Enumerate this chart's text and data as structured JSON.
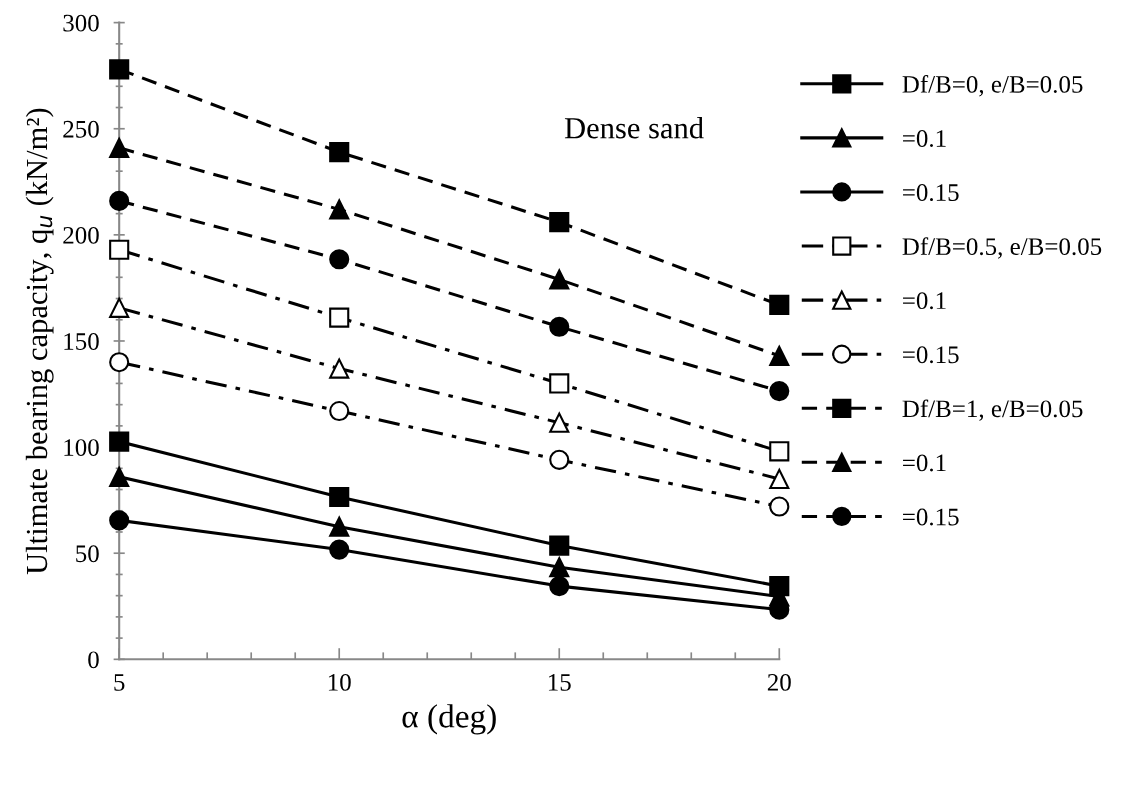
{
  "chart_data": {
    "type": "line",
    "xlabel": "α (deg)",
    "ylabel": "Ultimate bearing capacity, q$_{u}$ (kN/m²)",
    "x": [
      5,
      10,
      15,
      20
    ],
    "xlim": [
      5,
      20
    ],
    "xticks": [
      5,
      10,
      15,
      20
    ],
    "ylim": [
      0,
      300
    ],
    "yticks": [
      0,
      50,
      100,
      150,
      200,
      250,
      300
    ],
    "grid": false,
    "legend": "right",
    "annotations": [
      "Dense sand"
    ],
    "series": [
      {
        "name": "Df/B=0, e/B=0.05",
        "color": "#000000",
        "marker": "square",
        "line_style": "solid",
        "values": [
          102.6,
          76.5,
          53.6,
          34.5
        ]
      },
      {
        "name": "=0.1",
        "color": "#000000",
        "marker": "triangle",
        "line_style": "solid",
        "values": [
          86,
          62.5,
          43.4,
          29.6
        ]
      },
      {
        "name": "=0.15",
        "color": "#000000",
        "marker": "circle",
        "line_style": "solid",
        "values": [
          65.5,
          51.7,
          34.5,
          23.4
        ]
      },
      {
        "name": "Df/B=0.5, e/B=0.05",
        "color": "#000000",
        "marker": "square",
        "line_style": "dashdot",
        "values": [
          193,
          161,
          130,
          98
        ]
      },
      {
        "name": "=0.1",
        "color": "#000000",
        "marker": "triangle",
        "line_style": "dashdot",
        "values": [
          165.6,
          137,
          111.5,
          85
        ]
      },
      {
        "name": "=0.15",
        "color": "#000000",
        "marker": "circle",
        "line_style": "dashdot",
        "values": [
          140,
          117,
          94,
          72
        ]
      },
      {
        "name": "Df/B=1, e/B=0.05",
        "color": "#000000",
        "marker": "square",
        "line_style": "dashed",
        "values": [
          278,
          239,
          206,
          167
        ]
      },
      {
        "name": "=0.1",
        "color": "#000000",
        "marker": "triangle",
        "line_style": "dashed",
        "values": [
          241,
          212,
          179,
          143
        ]
      },
      {
        "name": "=0.15",
        "color": "#000000",
        "marker": "circle",
        "line_style": "dashed",
        "values": [
          216,
          188.5,
          156.7,
          126.4
        ]
      }
    ]
  }
}
